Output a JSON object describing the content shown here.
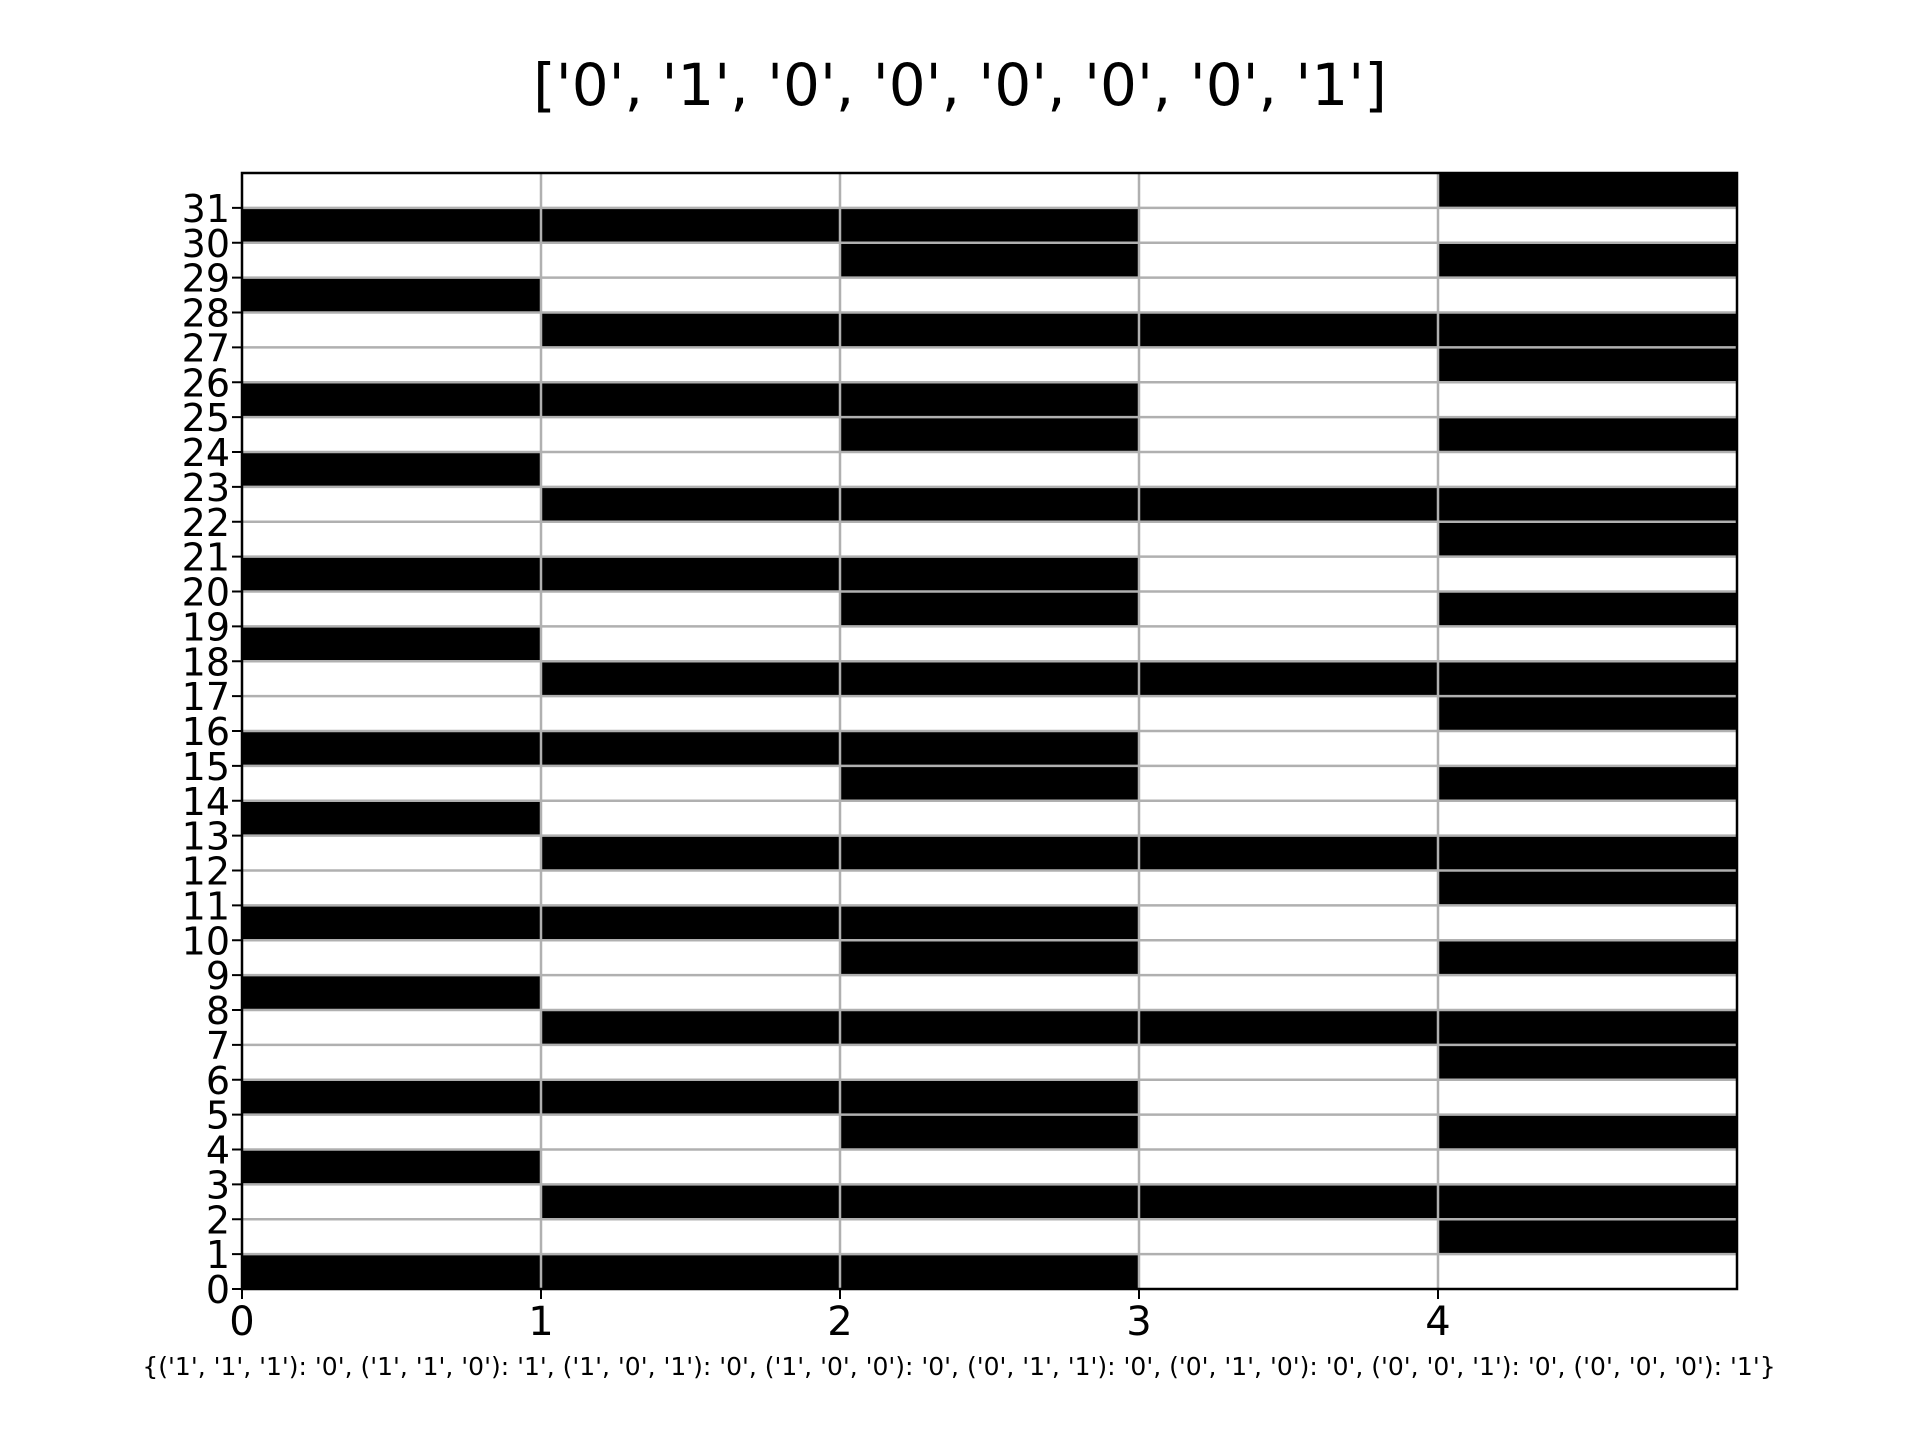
{
  "chart_data": {
    "type": "heatmap",
    "title": "['0', '1', '0', '0', '0', '0', '0', '1']",
    "xlabel": "{('1', '1', '1'): '0', ('1', '1', '0'): '1', ('1', '0', '1'): '0', ('1', '0', '0'): '0', ('0', '1', '1'): '0', ('0', '1', '0'): '0', ('0', '0', '1'): '0', ('0', '0', '0'): '1'}",
    "ylabel": "",
    "xlim": [
      0,
      5
    ],
    "ylim": [
      0,
      32
    ],
    "x_ticks": [
      "0",
      "1",
      "2",
      "3",
      "4"
    ],
    "y_ticks": [
      "0",
      "1",
      "2",
      "3",
      "4",
      "5",
      "6",
      "7",
      "8",
      "9",
      "10",
      "11",
      "12",
      "13",
      "14",
      "15",
      "16",
      "17",
      "18",
      "19",
      "20",
      "21",
      "22",
      "23",
      "24",
      "25",
      "26",
      "27",
      "28",
      "29",
      "30",
      "31"
    ],
    "grid": true,
    "colors": {
      "on": "#000000",
      "off": "#ffffff",
      "grid": "#b0b0b0"
    },
    "rows": [
      [
        1,
        1,
        1,
        0,
        0
      ],
      [
        0,
        0,
        0,
        0,
        1
      ],
      [
        0,
        1,
        1,
        1,
        1
      ],
      [
        1,
        0,
        0,
        0,
        0
      ],
      [
        0,
        0,
        1,
        0,
        1
      ],
      [
        1,
        1,
        1,
        0,
        0
      ],
      [
        0,
        0,
        0,
        0,
        1
      ],
      [
        0,
        1,
        1,
        1,
        1
      ],
      [
        1,
        0,
        0,
        0,
        0
      ],
      [
        0,
        0,
        1,
        0,
        1
      ],
      [
        1,
        1,
        1,
        0,
        0
      ],
      [
        0,
        0,
        0,
        0,
        1
      ],
      [
        0,
        1,
        1,
        1,
        1
      ],
      [
        1,
        0,
        0,
        0,
        0
      ],
      [
        0,
        0,
        1,
        0,
        1
      ],
      [
        1,
        1,
        1,
        0,
        0
      ],
      [
        0,
        0,
        0,
        0,
        1
      ],
      [
        0,
        1,
        1,
        1,
        1
      ],
      [
        1,
        0,
        0,
        0,
        0
      ],
      [
        0,
        0,
        1,
        0,
        1
      ],
      [
        1,
        1,
        1,
        0,
        0
      ],
      [
        0,
        0,
        0,
        0,
        1
      ],
      [
        0,
        1,
        1,
        1,
        1
      ],
      [
        1,
        0,
        0,
        0,
        0
      ],
      [
        0,
        0,
        1,
        0,
        1
      ],
      [
        1,
        1,
        1,
        0,
        0
      ],
      [
        0,
        0,
        0,
        0,
        1
      ],
      [
        0,
        1,
        1,
        1,
        1
      ],
      [
        1,
        0,
        0,
        0,
        0
      ],
      [
        0,
        0,
        1,
        0,
        1
      ],
      [
        1,
        1,
        1,
        0,
        0
      ],
      [
        0,
        0,
        0,
        0,
        1
      ]
    ]
  }
}
